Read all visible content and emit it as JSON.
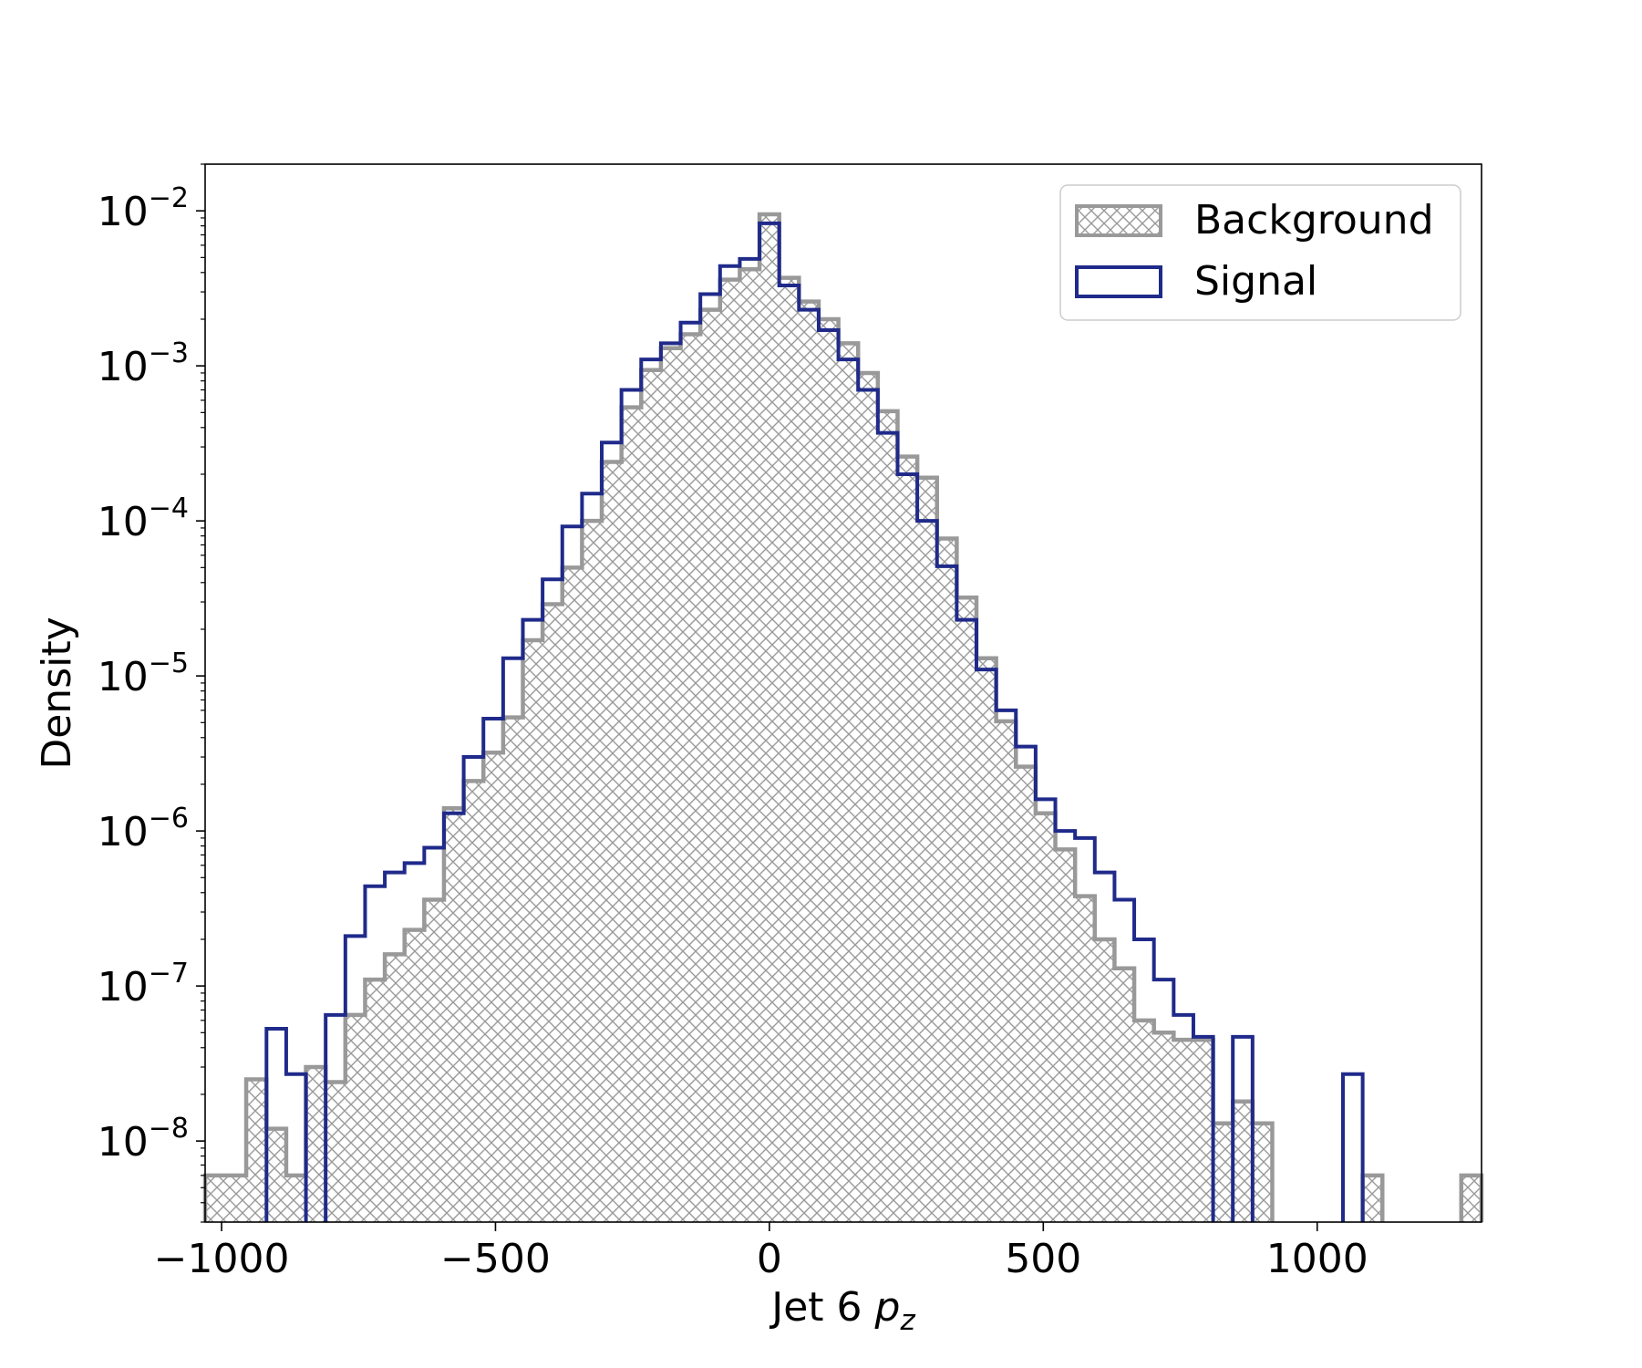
{
  "chart_data": {
    "type": "histogram",
    "title": "",
    "xlabel": {
      "base": "Jet 6 ",
      "var": "p",
      "sub": "z"
    },
    "ylabel": "Density",
    "xlim": [
      -1030,
      1300
    ],
    "ylim": [
      3e-09,
      0.02
    ],
    "yscale": "log",
    "xticks": [
      -1000,
      -500,
      0,
      500,
      1000
    ],
    "xtick_labels": [
      "−1000",
      "−500",
      "0",
      "500",
      "1000"
    ],
    "yticks": [
      1e-08,
      1e-07,
      1e-06,
      1e-05,
      0.0001,
      0.001,
      0.01
    ],
    "ytick_exponents": [
      "−8",
      "−7",
      "−6",
      "−5",
      "−4",
      "−3",
      "−2"
    ],
    "ytick_base": "10",
    "grid": false,
    "legend_position": "top-right",
    "series": [
      {
        "name": "Background",
        "style": "hatched-fill",
        "color": "#999999",
        "bins": [
          [
            -1030,
            -955,
            6e-09
          ],
          [
            -955,
            -918,
            2.5e-08
          ],
          [
            -918,
            -882,
            1.2e-08
          ],
          [
            -882,
            -846,
            6e-09
          ],
          [
            -846,
            -810,
            3e-08
          ],
          [
            -810,
            -774,
            2.4e-08
          ],
          [
            -774,
            -738,
            6.5e-08
          ],
          [
            -738,
            -702,
            1.1e-07
          ],
          [
            -702,
            -666,
            1.6e-07
          ],
          [
            -666,
            -630,
            2.3e-07
          ],
          [
            -630,
            -594,
            3.6e-07
          ],
          [
            -594,
            -558,
            1.4e-06
          ],
          [
            -558,
            -522,
            2.1e-06
          ],
          [
            -522,
            -486,
            3.2e-06
          ],
          [
            -486,
            -450,
            5.4e-06
          ],
          [
            -450,
            -414,
            1.7e-05
          ],
          [
            -414,
            -378,
            2.9e-05
          ],
          [
            -378,
            -342,
            5e-05
          ],
          [
            -342,
            -306,
            0.0001
          ],
          [
            -306,
            -270,
            0.00024
          ],
          [
            -270,
            -234,
            0.00054
          ],
          [
            -234,
            -198,
            0.00094
          ],
          [
            -198,
            -162,
            0.0013
          ],
          [
            -162,
            -126,
            0.0016
          ],
          [
            -126,
            -90,
            0.0023
          ],
          [
            -90,
            -54,
            0.0036
          ],
          [
            -54,
            -18,
            0.0042
          ],
          [
            -18,
            18,
            0.0095
          ],
          [
            18,
            54,
            0.0037
          ],
          [
            54,
            90,
            0.0026
          ],
          [
            90,
            126,
            0.002
          ],
          [
            126,
            162,
            0.0014
          ],
          [
            162,
            198,
            0.0009
          ],
          [
            198,
            234,
            0.00051
          ],
          [
            234,
            270,
            0.00026
          ],
          [
            270,
            306,
            0.00019
          ],
          [
            306,
            342,
            7.7e-05
          ],
          [
            342,
            378,
            3.2e-05
          ],
          [
            378,
            414,
            1.3e-05
          ],
          [
            414,
            450,
            5.1e-06
          ],
          [
            450,
            486,
            2.6e-06
          ],
          [
            486,
            522,
            1.3e-06
          ],
          [
            522,
            558,
            7.6e-07
          ],
          [
            558,
            594,
            3.8e-07
          ],
          [
            594,
            630,
            2e-07
          ],
          [
            630,
            666,
            1.3e-07
          ],
          [
            666,
            702,
            6e-08
          ],
          [
            702,
            738,
            5e-08
          ],
          [
            738,
            774,
            4.5e-08
          ],
          [
            774,
            810,
            4.5e-08
          ],
          [
            810,
            846,
            1.3e-08
          ],
          [
            846,
            882,
            1.8e-08
          ],
          [
            882,
            918,
            1.3e-08
          ],
          [
            1083,
            1119,
            6e-09
          ],
          [
            1263,
            1300,
            6e-09
          ]
        ]
      },
      {
        "name": "Signal",
        "style": "step-outline",
        "color": "#1f2a8a",
        "bins": [
          [
            -918,
            -882,
            5.3e-08
          ],
          [
            -882,
            -846,
            2.7e-08
          ],
          [
            -810,
            -774,
            6.5e-08
          ],
          [
            -774,
            -738,
            2.1e-07
          ],
          [
            -738,
            -702,
            4.4e-07
          ],
          [
            -702,
            -666,
            5.4e-07
          ],
          [
            -666,
            -630,
            6.2e-07
          ],
          [
            -630,
            -594,
            7.8e-07
          ],
          [
            -594,
            -558,
            1.3e-06
          ],
          [
            -558,
            -522,
            3e-06
          ],
          [
            -522,
            -486,
            5.3e-06
          ],
          [
            -486,
            -450,
            1.3e-05
          ],
          [
            -450,
            -414,
            2.3e-05
          ],
          [
            -414,
            -378,
            4.2e-05
          ],
          [
            -378,
            -342,
            9.2e-05
          ],
          [
            -342,
            -306,
            0.00015
          ],
          [
            -306,
            -270,
            0.00032
          ],
          [
            -270,
            -234,
            0.0007
          ],
          [
            -234,
            -198,
            0.0011
          ],
          [
            -198,
            -162,
            0.0014
          ],
          [
            -162,
            -126,
            0.0019
          ],
          [
            -126,
            -90,
            0.0029
          ],
          [
            -90,
            -54,
            0.0044
          ],
          [
            -54,
            -18,
            0.0049
          ],
          [
            -18,
            18,
            0.0083
          ],
          [
            18,
            54,
            0.0033
          ],
          [
            54,
            90,
            0.0023
          ],
          [
            90,
            126,
            0.0017
          ],
          [
            126,
            162,
            0.0011
          ],
          [
            162,
            198,
            0.0007
          ],
          [
            198,
            234,
            0.00037
          ],
          [
            234,
            270,
            0.0002
          ],
          [
            270,
            306,
            0.0001
          ],
          [
            306,
            342,
            5.1e-05
          ],
          [
            342,
            378,
            2.3e-05
          ],
          [
            378,
            414,
            1.1e-05
          ],
          [
            414,
            450,
            6e-06
          ],
          [
            450,
            486,
            3.5e-06
          ],
          [
            486,
            522,
            1.6e-06
          ],
          [
            522,
            558,
            1e-06
          ],
          [
            558,
            594,
            9e-07
          ],
          [
            594,
            630,
            5.4e-07
          ],
          [
            630,
            666,
            3.6e-07
          ],
          [
            666,
            702,
            2e-07
          ],
          [
            702,
            738,
            1.1e-07
          ],
          [
            738,
            774,
            6.5e-08
          ],
          [
            774,
            810,
            4.7e-08
          ],
          [
            846,
            882,
            4.7e-08
          ],
          [
            1047,
            1083,
            2.7e-08
          ]
        ]
      }
    ]
  }
}
